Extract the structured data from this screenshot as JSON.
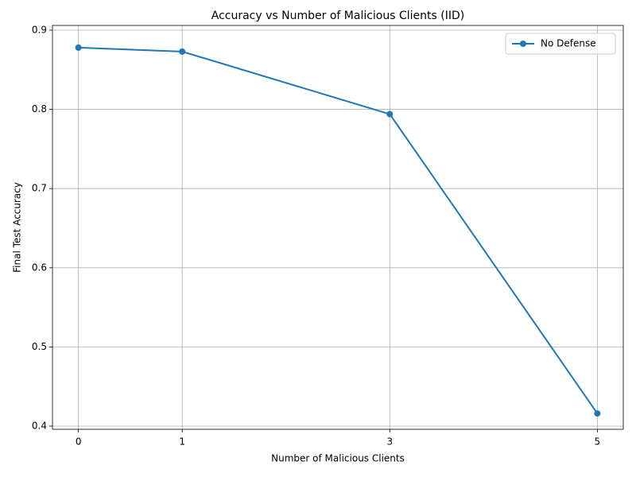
{
  "chart_data": {
    "type": "line",
    "title": "Accuracy vs Number of Malicious Clients (IID)",
    "x_label": "Number of Malicious Clients",
    "y_label": "Final Test Accuracy",
    "x": [
      0,
      1,
      3,
      5
    ],
    "series": [
      {
        "name": "No Defense",
        "color": "#1f77b4",
        "values": [
          0.878,
          0.873,
          0.794,
          0.416
        ]
      }
    ],
    "xlim": [
      -0.25,
      5.25
    ],
    "xticks": [
      0,
      1,
      3,
      5
    ],
    "ylim": [
      0.396,
      0.906
    ],
    "yticks": [
      0.4,
      0.5,
      0.6,
      0.7,
      0.8,
      0.9
    ],
    "grid": true,
    "legend": "upper right"
  }
}
